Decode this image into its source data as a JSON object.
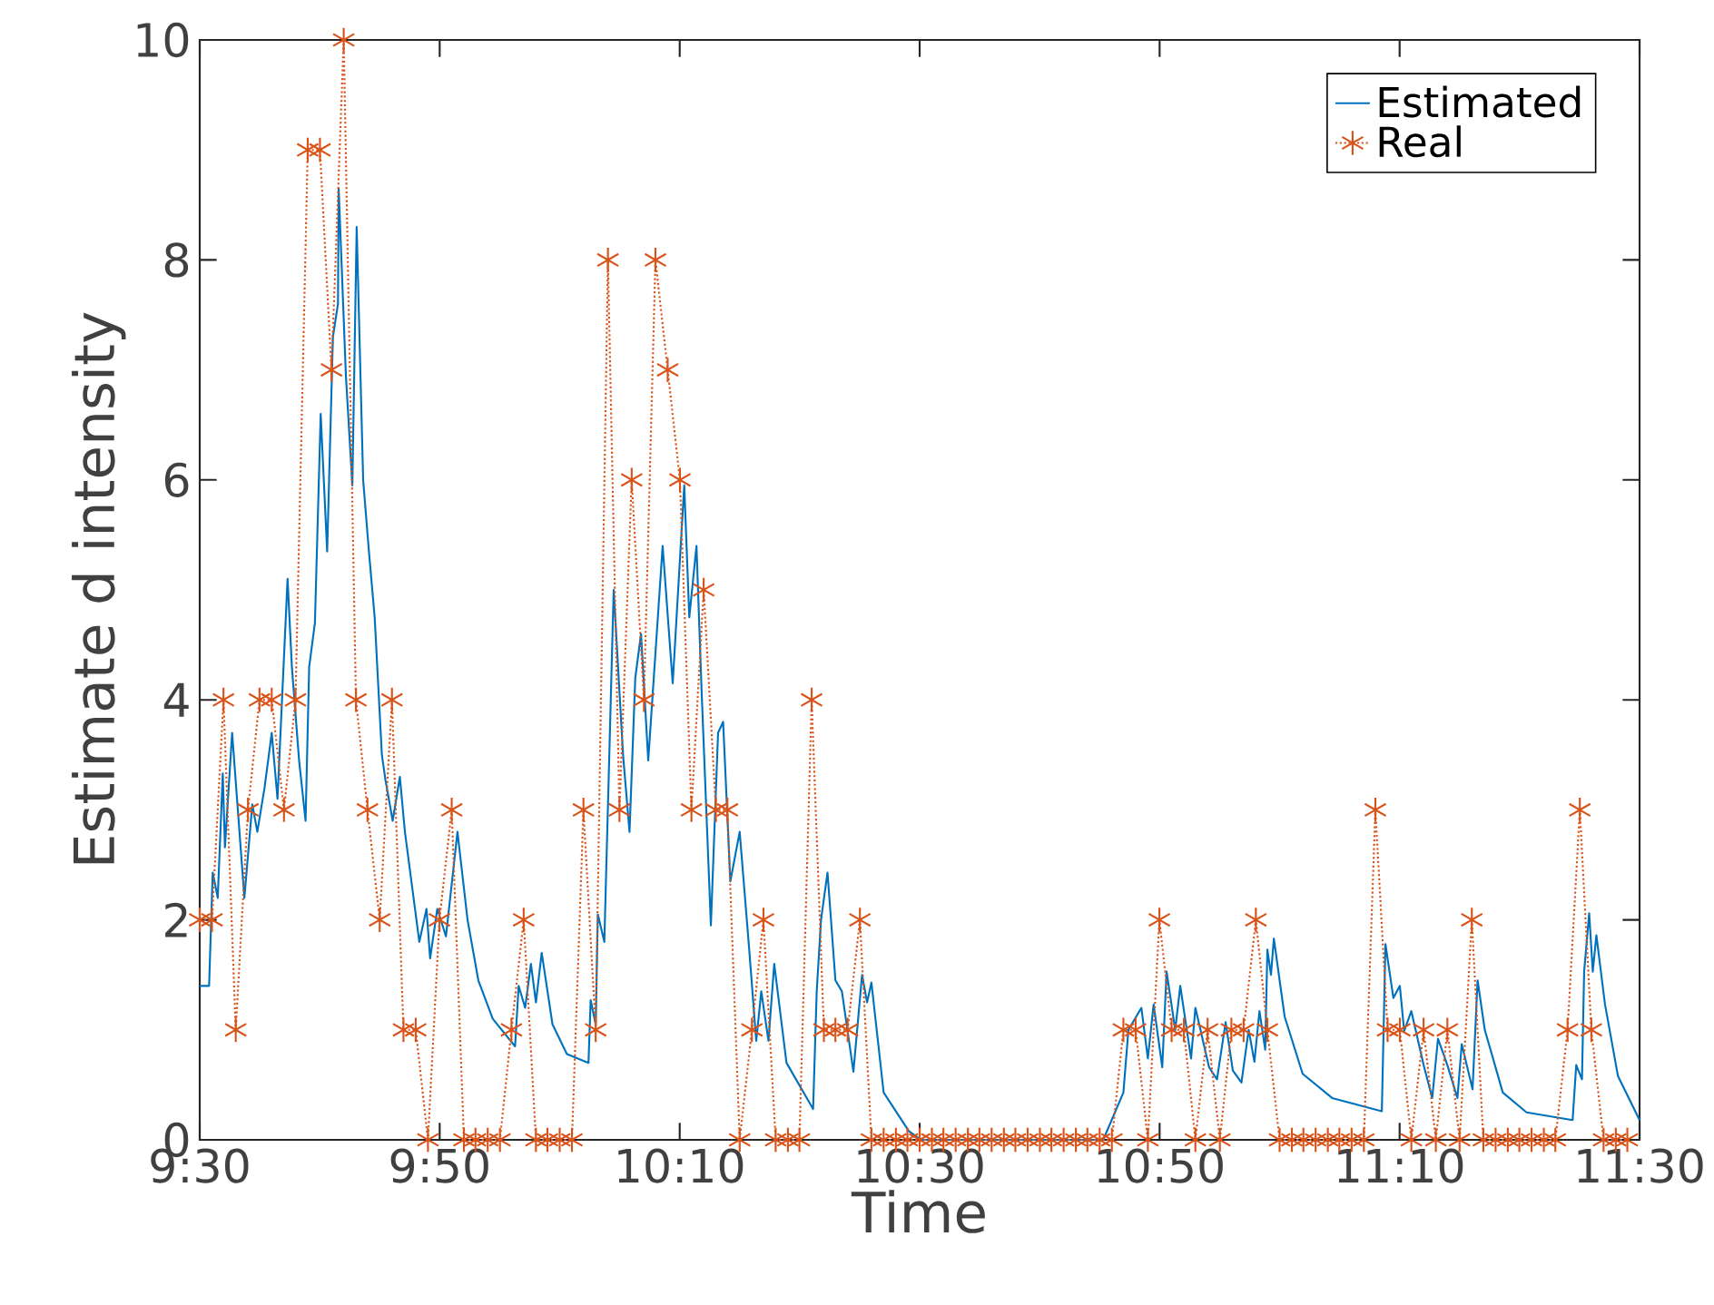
{
  "chart_data": {
    "type": "line",
    "xlabel": "Time",
    "ylabel": "Estimate d intensity",
    "xlim": [
      9.5,
      11.5
    ],
    "ylim": [
      0,
      10
    ],
    "xticks": [
      {
        "value": 9.5,
        "label": "9:30"
      },
      {
        "value": 9.8333,
        "label": "9:50"
      },
      {
        "value": 10.1667,
        "label": "10:10"
      },
      {
        "value": 10.5,
        "label": "10:30"
      },
      {
        "value": 10.8333,
        "label": "10:50"
      },
      {
        "value": 11.1667,
        "label": "11:10"
      },
      {
        "value": 11.5,
        "label": "11:30"
      }
    ],
    "yticks": [
      0,
      2,
      4,
      6,
      8,
      10
    ],
    "legend": "top right",
    "grid": false,
    "series": [
      {
        "name": "Estimated",
        "color": "#0072bd",
        "marker": "none",
        "line_style": "solid",
        "x": [
          9.5,
          9.513,
          9.518,
          9.525,
          9.532,
          9.535,
          9.545,
          9.562,
          9.573,
          9.58,
          9.59,
          9.6,
          9.608,
          9.622,
          9.628,
          9.638,
          9.647,
          9.652,
          9.66,
          9.668,
          9.677,
          9.685,
          9.692,
          9.693,
          9.703,
          9.712,
          9.718,
          9.727,
          9.735,
          9.743,
          9.753,
          9.758,
          9.768,
          9.778,
          9.785,
          9.793,
          9.805,
          9.815,
          9.82,
          9.83,
          9.842,
          9.858,
          9.872,
          9.887,
          9.907,
          9.938,
          9.943,
          9.952,
          9.96,
          9.967,
          9.975,
          9.99,
          10.01,
          10.04,
          10.043,
          10.05,
          10.053,
          10.062,
          10.075,
          10.088,
          10.097,
          10.105,
          10.113,
          10.123,
          10.143,
          10.157,
          10.173,
          10.18,
          10.19,
          10.197,
          10.21,
          10.22,
          10.227,
          10.237,
          10.25,
          10.263,
          10.273,
          10.28,
          10.29,
          10.298,
          10.315,
          10.352,
          10.357,
          10.363,
          10.372,
          10.383,
          10.392,
          10.408,
          10.42,
          10.427,
          10.433,
          10.45,
          10.485,
          10.502,
          10.755,
          10.783,
          10.79,
          10.808,
          10.817,
          10.825,
          10.837,
          10.843,
          10.855,
          10.862,
          10.877,
          10.883,
          10.902,
          10.913,
          10.925,
          10.935,
          10.947,
          10.957,
          10.965,
          10.972,
          10.98,
          10.983,
          10.988,
          10.992,
          11.007,
          11.032,
          11.073,
          11.142,
          11.147,
          11.158,
          11.167,
          11.173,
          11.183,
          11.2,
          11.212,
          11.22,
          11.233,
          11.247,
          11.253,
          11.268,
          11.275,
          11.285,
          11.31,
          11.343,
          11.407,
          11.412,
          11.42,
          11.423,
          11.43,
          11.435,
          11.44,
          11.452,
          11.47,
          11.5
        ],
        "values": [
          1.4,
          1.4,
          2.43,
          2.2,
          3.33,
          2.66,
          3.7,
          2.2,
          3.05,
          2.8,
          3.2,
          3.7,
          3.1,
          5.1,
          4.3,
          3.45,
          2.9,
          4.3,
          4.7,
          6.6,
          5.35,
          7.3,
          7.6,
          8.65,
          6.95,
          5.95,
          8.3,
          6.0,
          5.35,
          4.75,
          3.5,
          3.27,
          2.9,
          3.3,
          2.8,
          2.4,
          1.8,
          2.1,
          1.65,
          2.1,
          1.85,
          2.8,
          2.0,
          1.45,
          1.1,
          0.85,
          1.4,
          1.2,
          1.6,
          1.25,
          1.7,
          1.05,
          0.78,
          0.7,
          1.27,
          1.05,
          2.05,
          1.8,
          5.0,
          3.5,
          2.8,
          4.2,
          4.6,
          3.45,
          5.4,
          4.15,
          5.95,
          4.75,
          5.4,
          4.1,
          1.95,
          3.7,
          3.8,
          2.35,
          2.8,
          1.75,
          0.9,
          1.35,
          0.9,
          1.6,
          0.7,
          0.28,
          1.35,
          2.0,
          2.43,
          1.45,
          1.35,
          0.62,
          1.5,
          1.25,
          1.43,
          0.43,
          0.08,
          0,
          0,
          0.43,
          1.0,
          1.2,
          0.74,
          1.23,
          0.66,
          1.53,
          1.0,
          1.4,
          0.74,
          1.2,
          0.66,
          0.55,
          1.07,
          0.63,
          0.52,
          1.0,
          0.71,
          1.17,
          0.82,
          1.73,
          1.5,
          1.83,
          1.12,
          0.6,
          0.38,
          0.26,
          1.78,
          1.29,
          1.4,
          0.99,
          1.17,
          0.68,
          0.38,
          0.92,
          0.68,
          0.38,
          0.87,
          0.46,
          1.45,
          1.0,
          0.43,
          0.25,
          0.18,
          0.68,
          0.55,
          1.53,
          2.06,
          1.53,
          1.86,
          1.23,
          0.58,
          0.18
        ]
      },
      {
        "name": "Real",
        "color": "#d95319",
        "marker": "cross",
        "line_style": "dotted",
        "x": [
          9.5,
          9.517,
          9.533,
          9.55,
          9.567,
          9.583,
          9.6,
          9.617,
          9.633,
          9.65,
          9.667,
          9.683,
          9.7,
          9.717,
          9.733,
          9.75,
          9.767,
          9.783,
          9.8,
          9.817,
          9.833,
          9.85,
          9.867,
          9.883,
          9.9,
          9.917,
          9.933,
          9.95,
          9.967,
          9.983,
          10,
          10.017,
          10.033,
          10.05,
          10.067,
          10.083,
          10.1,
          10.117,
          10.133,
          10.15,
          10.167,
          10.183,
          10.2,
          10.217,
          10.233,
          10.25,
          10.267,
          10.283,
          10.3,
          10.317,
          10.333,
          10.35,
          10.367,
          10.383,
          10.4,
          10.417,
          10.433,
          10.45,
          10.467,
          10.483,
          10.5,
          10.517,
          10.533,
          10.55,
          10.567,
          10.583,
          10.6,
          10.617,
          10.633,
          10.65,
          10.667,
          10.683,
          10.7,
          10.717,
          10.733,
          10.75,
          10.767,
          10.783,
          10.8,
          10.817,
          10.833,
          10.85,
          10.867,
          10.883,
          10.9,
          10.917,
          10.933,
          10.95,
          10.967,
          10.983,
          11,
          11.017,
          11.033,
          11.05,
          11.067,
          11.083,
          11.1,
          11.117,
          11.133,
          11.15,
          11.167,
          11.183,
          11.2,
          11.217,
          11.233,
          11.25,
          11.267,
          11.283,
          11.3,
          11.317,
          11.333,
          11.35,
          11.367,
          11.383,
          11.4,
          11.417,
          11.433,
          11.45,
          11.467,
          11.483
        ],
        "values": [
          2,
          2,
          4,
          1,
          3,
          4,
          4,
          3,
          4,
          9,
          9,
          7,
          10,
          4,
          3,
          2,
          4,
          1,
          1,
          0,
          2,
          3,
          0,
          0,
          0,
          0,
          1,
          2,
          0,
          0,
          0,
          0,
          3,
          1,
          8,
          3,
          6,
          4,
          8,
          7,
          6,
          3,
          5,
          3,
          3,
          0,
          1,
          2,
          0,
          0,
          0,
          4,
          1,
          1,
          1,
          2,
          0,
          0,
          0,
          0,
          0,
          0,
          0,
          0,
          0,
          0,
          0,
          0,
          0,
          0,
          0,
          0,
          0,
          0,
          0,
          0,
          0,
          1,
          1,
          0,
          2,
          1,
          1,
          0,
          1,
          0,
          1,
          1,
          2,
          1,
          0,
          0,
          0,
          0,
          0,
          0,
          0,
          0,
          3,
          1,
          1,
          0,
          1,
          0,
          1,
          0,
          2,
          0,
          0,
          0,
          0,
          0,
          0,
          0,
          1,
          3,
          1,
          0,
          0,
          0
        ]
      }
    ]
  }
}
